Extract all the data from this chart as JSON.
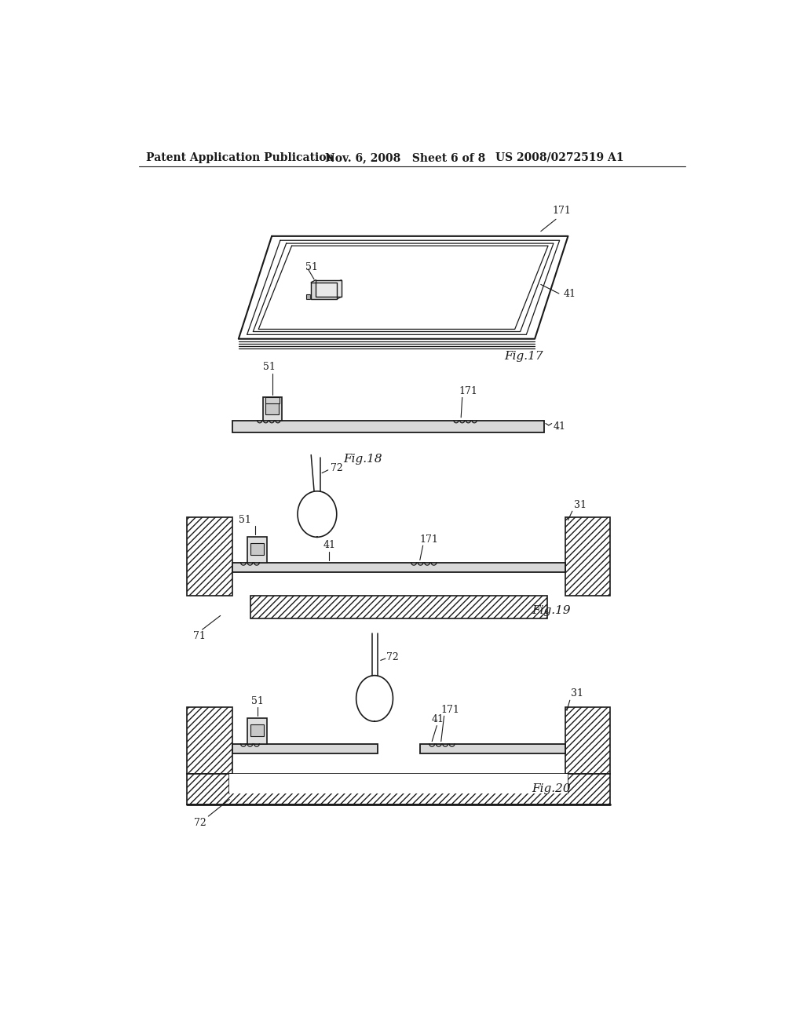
{
  "bg_color": "#ffffff",
  "line_color": "#1a1a1a",
  "header_left": "Patent Application Publication",
  "header_mid": "Nov. 6, 2008   Sheet 6 of 8",
  "header_right": "US 2008/0272519 A1",
  "fig17_label": "Fig.17",
  "fig18_label": "Fig.18",
  "fig19_label": "Fig.19",
  "fig20_label": "Fig.20"
}
